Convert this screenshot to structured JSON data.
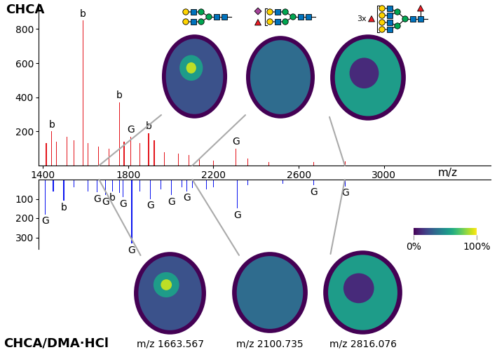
{
  "chart_data": [
    {
      "type": "bar",
      "title": "CHCA",
      "color": "#e3141b",
      "x": [
        1416,
        1442,
        1465,
        1514,
        1547,
        1589,
        1612,
        1661,
        1710,
        1759,
        1781,
        1811,
        1856,
        1896,
        1922,
        1971,
        2036,
        2085,
        2134,
        2199,
        2306,
        2362,
        2460,
        2671,
        2818
      ],
      "values": [
        130,
        200,
        140,
        170,
        150,
        850,
        130,
        110,
        100,
        370,
        140,
        170,
        130,
        190,
        150,
        80,
        70,
        60,
        40,
        30,
        100,
        40,
        20,
        20,
        25
      ],
      "annotations": [
        {
          "x": 1442,
          "text": "b"
        },
        {
          "x": 1589,
          "text": "b"
        },
        {
          "x": 1759,
          "text": "b"
        },
        {
          "x": 1811,
          "text": "G"
        },
        {
          "x": 1896,
          "text": "b"
        },
        {
          "x": 2306,
          "text": "G"
        }
      ],
      "xlabel": "m/z",
      "xlim": [
        1380,
        3500
      ],
      "xticks": [
        1400,
        1800,
        2200,
        2600,
        3000
      ],
      "ylim": [
        0,
        950
      ],
      "yticks": [
        200,
        400,
        600,
        800
      ]
    },
    {
      "type": "bar",
      "title": "CHCA/DMA·HCl",
      "color": "#0a14f0",
      "x": [
        1410,
        1449,
        1498,
        1547,
        1612,
        1654,
        1693,
        1726,
        1759,
        1775,
        1817,
        1856,
        1905,
        1954,
        2003,
        2052,
        2075,
        2101,
        2166,
        2199,
        2313,
        2362,
        2525,
        2671,
        2818
      ],
      "values": [
        180,
        60,
        110,
        40,
        60,
        65,
        80,
        60,
        70,
        90,
        330,
        60,
        100,
        50,
        80,
        40,
        60,
        45,
        50,
        40,
        150,
        30,
        20,
        30,
        35
      ],
      "annotations": [
        {
          "x": 1410,
          "text": "G"
        },
        {
          "x": 1498,
          "text": "b"
        },
        {
          "x": 1654,
          "text": "G"
        },
        {
          "x": 1693,
          "text": "G"
        },
        {
          "x": 1726,
          "text": "b"
        },
        {
          "x": 1775,
          "text": "G"
        },
        {
          "x": 1817,
          "text": "G"
        },
        {
          "x": 1905,
          "text": "G"
        },
        {
          "x": 2003,
          "text": "G"
        },
        {
          "x": 2075,
          "text": "G"
        },
        {
          "x": 2313,
          "text": "G"
        },
        {
          "x": 2671,
          "text": "G"
        },
        {
          "x": 2818,
          "text": "G"
        }
      ],
      "xlim": [
        1380,
        3500
      ],
      "ylim": [
        0,
        360
      ],
      "yticks": [
        100,
        200,
        300
      ],
      "tick_labels": "y"
    }
  ],
  "ion_images": [
    {
      "mz": 1663.567,
      "label": "m/z 1663.567"
    },
    {
      "mz": 2100.735,
      "label": "m/z 2100.735"
    },
    {
      "mz": 2816.076,
      "label": "m/z 2816.076"
    }
  ],
  "color_scale": {
    "range": [
      0,
      100
    ],
    "ticks": [
      {
        "value": 0,
        "label": "0%"
      },
      {
        "value": 100,
        "label": "100%"
      }
    ]
  },
  "glycan_note": "3x"
}
